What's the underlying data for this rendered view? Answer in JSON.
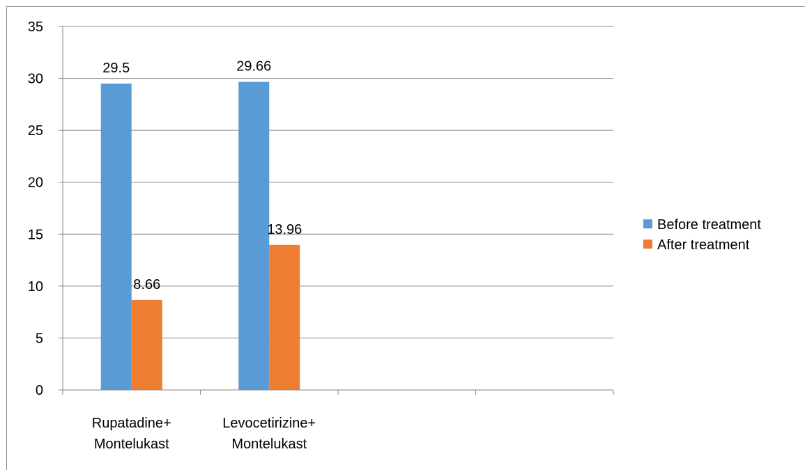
{
  "chart_data": {
    "type": "bar",
    "categories": [
      [
        "Rupatadine+",
        "Montelukast"
      ],
      [
        "Levocetirizine+",
        "Montelukast"
      ],
      [
        "",
        ""
      ],
      [
        "",
        ""
      ]
    ],
    "series": [
      {
        "name": "Before treatment",
        "color": "#5b9bd5",
        "values": [
          29.5,
          29.66,
          null,
          null
        ],
        "labels": [
          "29.5",
          "29.66",
          "",
          ""
        ]
      },
      {
        "name": "After treatment",
        "color": "#ed7d31",
        "values": [
          8.66,
          13.96,
          null,
          null
        ],
        "labels": [
          "8.66",
          "13.96",
          "",
          ""
        ]
      }
    ],
    "ylim": [
      0,
      35
    ],
    "yticks": [
      0,
      5,
      10,
      15,
      20,
      25,
      30,
      35
    ],
    "grid": true,
    "legend_position": "right",
    "title": "",
    "xlabel": "",
    "ylabel": ""
  }
}
